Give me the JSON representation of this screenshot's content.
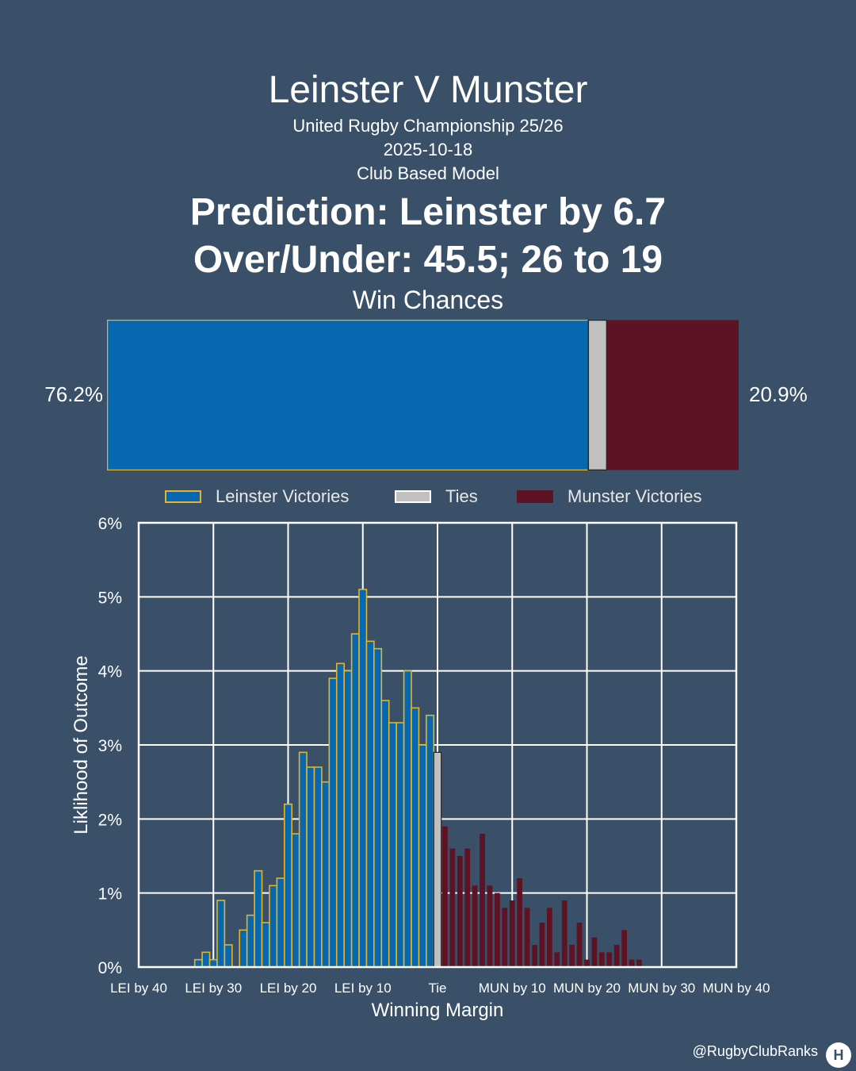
{
  "header": {
    "title": "Leinster V Munster",
    "competition": "United Rugby Championship 25/26",
    "date": "2025-10-18",
    "model": "Club Based Model",
    "prediction": "Prediction: Leinster by 6.7",
    "over_under": "Over/Under: 45.5; 26 to 19"
  },
  "win_chances": {
    "title": "Win Chances",
    "leinster_pct": 76.2,
    "tie_pct": 2.9,
    "munster_pct": 20.9,
    "leinster_label": "76.2%",
    "munster_label": "20.9%"
  },
  "legend": {
    "leinster": "Leinster Victories",
    "ties": "Ties",
    "munster": "Munster Victories"
  },
  "colors": {
    "leinster": "#0867b1",
    "leinster_edge": "#e4b423",
    "tie": "#c0c0c0",
    "munster": "#5e1325",
    "background": "#3a5068"
  },
  "credit": "@RugbyClubRanks",
  "chart_data": {
    "type": "bar",
    "xlabel": "Winning Margin",
    "ylabel": "Liklihood of Outcome",
    "xlim": [
      -40,
      40
    ],
    "ylim": [
      0,
      6
    ],
    "grid": true,
    "x_ticks": [
      -40,
      -30,
      -20,
      -10,
      0,
      10,
      20,
      30,
      40
    ],
    "x_tick_labels": [
      "LEI by 40",
      "LEI by 30",
      "LEI by 20",
      "LEI by 10",
      "Tie",
      "MUN by 10",
      "MUN by 20",
      "MUN by 30",
      "MUN by 40"
    ],
    "y_ticks": [
      0,
      1,
      2,
      3,
      4,
      5,
      6
    ],
    "y_tick_labels": [
      "0%",
      "1%",
      "2%",
      "3%",
      "4%",
      "5%",
      "6%"
    ],
    "series": [
      {
        "name": "Leinster Victories",
        "x": [
          -32,
          -31,
          -30,
          -29,
          -28,
          -27,
          -26,
          -25,
          -24,
          -23,
          -22,
          -21,
          -20,
          -19,
          -18,
          -17,
          -16,
          -15,
          -14,
          -13,
          -12,
          -11,
          -10,
          -9,
          -8,
          -7,
          -6,
          -5,
          -4,
          -3,
          -2,
          -1
        ],
        "values": [
          0.1,
          0.2,
          0.1,
          0.9,
          0.3,
          0.0,
          0.5,
          0.7,
          1.3,
          0.6,
          1.1,
          1.2,
          2.2,
          1.8,
          2.9,
          2.7,
          2.7,
          2.5,
          3.9,
          4.1,
          4.0,
          4.5,
          5.1,
          4.4,
          4.3,
          3.6,
          3.3,
          3.3,
          4.0,
          3.5,
          3.0,
          3.4
        ]
      },
      {
        "name": "Ties",
        "x": [
          0
        ],
        "values": [
          2.9
        ]
      },
      {
        "name": "Munster Victories",
        "x": [
          1,
          2,
          3,
          4,
          5,
          6,
          7,
          8,
          9,
          10,
          11,
          12,
          13,
          14,
          15,
          16,
          17,
          18,
          19,
          20,
          21,
          22,
          23,
          24,
          25,
          26,
          27
        ],
        "values": [
          1.9,
          1.6,
          1.5,
          1.6,
          1.1,
          1.8,
          1.1,
          1.0,
          0.8,
          0.9,
          1.2,
          0.8,
          0.3,
          0.6,
          0.8,
          0.2,
          0.9,
          0.3,
          0.6,
          0.1,
          0.4,
          0.2,
          0.2,
          0.3,
          0.5,
          0.1,
          0.1
        ]
      }
    ]
  }
}
